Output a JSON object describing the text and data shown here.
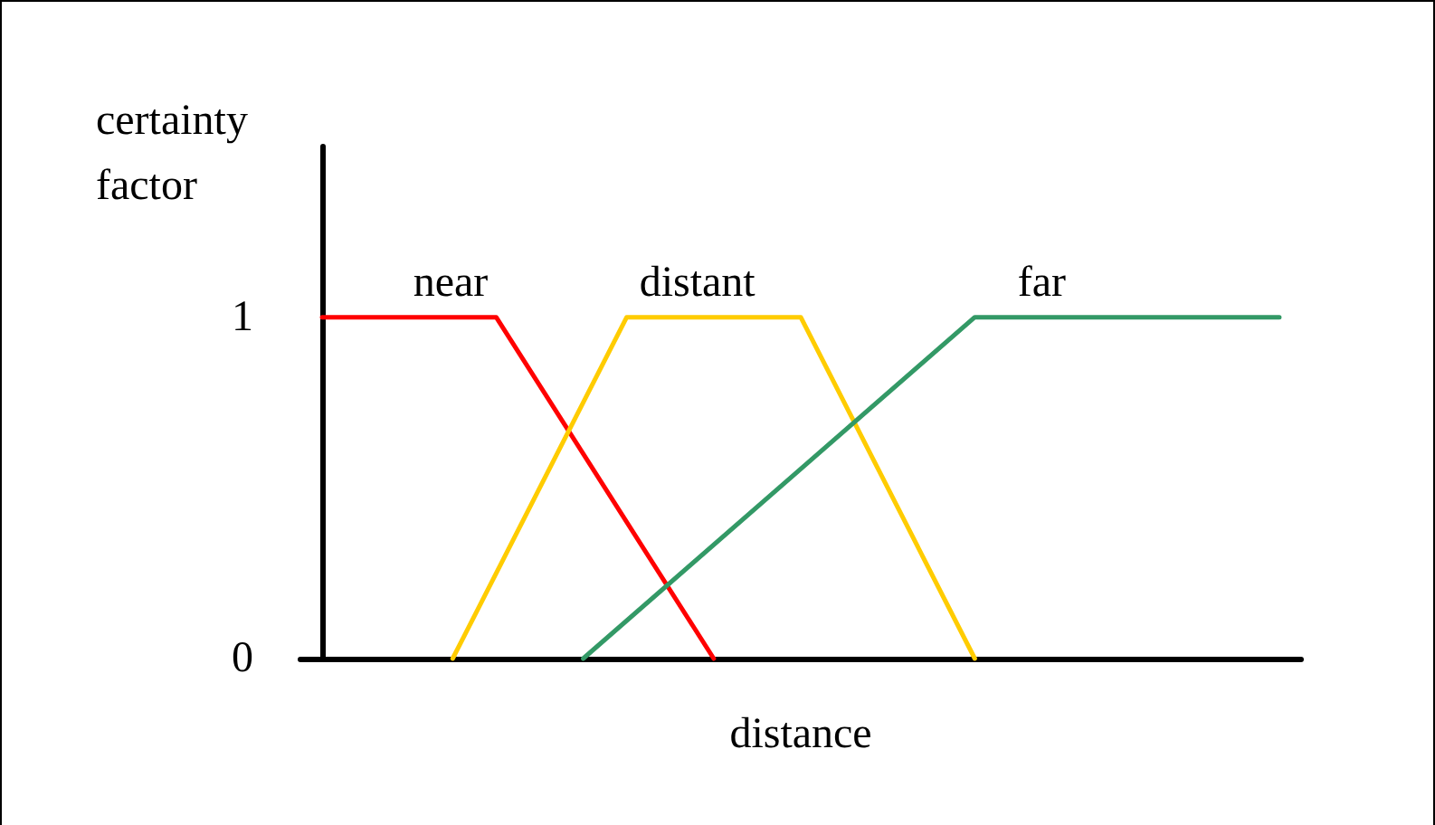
{
  "chart_data": {
    "type": "line",
    "ylabel": "certainty factor",
    "xlabel": "distance",
    "categories": [
      null,
      null,
      null,
      null,
      null,
      null,
      null,
      null,
      null,
      null,
      null,
      null,
      null,
      null,
      null,
      null,
      null,
      null,
      null,
      null,
      null,
      null,
      null
    ],
    "series": [
      {
        "name": "near",
        "color": "#ff0000",
        "values": [
          1,
          null,
          null,
          null,
          1,
          null,
          null,
          null,
          null,
          0,
          null,
          null,
          null,
          null,
          null,
          null,
          null,
          null,
          null,
          null,
          null,
          null,
          null
        ]
      },
      {
        "name": "distant",
        "color": "#ffcc00",
        "values": [
          null,
          null,
          null,
          0,
          null,
          null,
          null,
          1,
          null,
          null,
          null,
          1,
          null,
          null,
          null,
          0,
          null,
          null,
          null,
          null,
          null,
          null,
          null
        ]
      },
      {
        "name": "far",
        "color": "#339966",
        "values": [
          null,
          null,
          null,
          null,
          null,
          null,
          0,
          null,
          null,
          null,
          null,
          null,
          null,
          null,
          null,
          1,
          null,
          null,
          null,
          null,
          null,
          null,
          1
        ]
      }
    ],
    "ylim": [
      0,
      1.5
    ],
    "yticks": [
      0,
      1
    ],
    "grid": false,
    "legend": false,
    "marker": "none",
    "line_style": "solid"
  }
}
